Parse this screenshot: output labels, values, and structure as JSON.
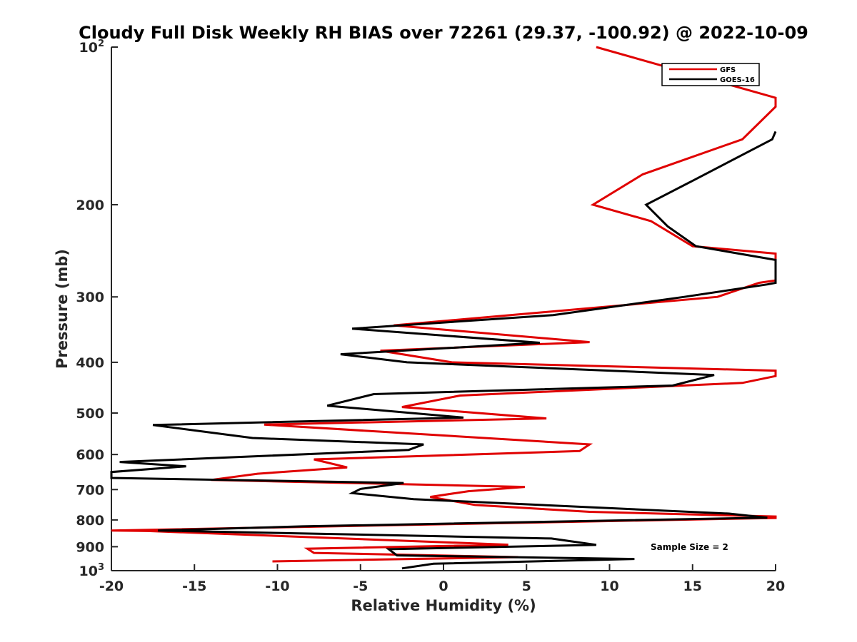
{
  "chart_data": {
    "type": "line",
    "title": "Cloudy Full Disk Weekly RH BIAS over 72261 (29.37, -100.92) @ 2022-10-09",
    "xlabel": "Relative Humidity (%)",
    "ylabel": "Pressure (mb)",
    "xlim": [
      -20,
      20
    ],
    "ylim": [
      100,
      1000
    ],
    "y_scale": "log",
    "y_reversed": true,
    "grid": false,
    "legend_position": "top-right",
    "x_ticks": [
      -20,
      -15,
      -10,
      -5,
      0,
      5,
      10,
      15,
      20
    ],
    "x_tick_labels": [
      "-20",
      "-15",
      "-10",
      "-5",
      "0",
      "5",
      "10",
      "15",
      "20"
    ],
    "y_ticks": [
      {
        "value": 100,
        "base": "10",
        "exp": "2"
      },
      {
        "value": 200,
        "label": "200"
      },
      {
        "value": 300,
        "label": "300"
      },
      {
        "value": 400,
        "label": "400"
      },
      {
        "value": 500,
        "label": "500"
      },
      {
        "value": 600,
        "label": "600"
      },
      {
        "value": 700,
        "label": "700"
      },
      {
        "value": 800,
        "label": "800"
      },
      {
        "value": 900,
        "label": "900"
      },
      {
        "value": 1000,
        "base": "10",
        "exp": "3"
      }
    ],
    "annotations": [
      "Sample Size = 2"
    ],
    "series": [
      {
        "name": "GFS",
        "color": "#e00000",
        "points": [
          [
            9.2,
            100
          ],
          [
            20,
            125
          ],
          [
            20,
            130
          ],
          [
            18,
            150
          ],
          [
            12,
            175
          ],
          [
            9,
            200
          ],
          [
            12.5,
            215
          ],
          [
            15,
            240
          ],
          [
            20,
            248
          ],
          [
            20,
            279
          ],
          [
            19,
            282
          ],
          [
            16.5,
            300
          ],
          [
            5.5,
            322
          ],
          [
            -3,
            340
          ],
          [
            8.8,
            366
          ],
          [
            -3.8,
            380
          ],
          [
            0.5,
            400
          ],
          [
            20,
            415
          ],
          [
            20,
            425
          ],
          [
            18,
            438
          ],
          [
            1,
            463
          ],
          [
            -2.5,
            487
          ],
          [
            6.2,
            512
          ],
          [
            -10.8,
            526
          ],
          [
            8.8,
            574
          ],
          [
            8.2,
            591
          ],
          [
            -7.8,
            613
          ],
          [
            -5.8,
            635
          ],
          [
            -11.2,
            653
          ],
          [
            -14,
            671
          ],
          [
            4.9,
            692
          ],
          [
            1.5,
            705
          ],
          [
            -0.8,
            723
          ],
          [
            1.9,
            749
          ],
          [
            8.8,
            772
          ],
          [
            20,
            788
          ],
          [
            20,
            793
          ],
          [
            -20,
            838
          ],
          [
            -17.8,
            840
          ],
          [
            3.9,
            892
          ],
          [
            -8.2,
            908
          ],
          [
            -7.8,
            925
          ],
          [
            4.5,
            942
          ],
          [
            -10.3,
            960
          ]
        ]
      },
      {
        "name": "GOES-16",
        "color": "#000000",
        "points": [
          [
            20,
            145
          ],
          [
            19.8,
            150
          ],
          [
            15,
            180
          ],
          [
            12.2,
            200
          ],
          [
            13.5,
            220
          ],
          [
            15.2,
            240
          ],
          [
            20,
            255
          ],
          [
            20,
            282
          ],
          [
            19.5,
            284
          ],
          [
            14.5,
            300
          ],
          [
            6.6,
            325
          ],
          [
            -5.5,
            345
          ],
          [
            5.8,
            367
          ],
          [
            -6.2,
            386
          ],
          [
            -2.2,
            400
          ],
          [
            16.3,
            423
          ],
          [
            13.8,
            443
          ],
          [
            -4.2,
            460
          ],
          [
            -7,
            484
          ],
          [
            1.2,
            510
          ],
          [
            -17.5,
            527
          ],
          [
            -11.5,
            558
          ],
          [
            -1.2,
            574
          ],
          [
            -2.1,
            588
          ],
          [
            -19.5,
            620
          ],
          [
            -15.5,
            632
          ],
          [
            -20,
            648
          ],
          [
            -20,
            665
          ],
          [
            -2.4,
            680
          ],
          [
            -5,
            698
          ],
          [
            -5.5,
            711
          ],
          [
            -1.8,
            730
          ],
          [
            17.2,
            778
          ],
          [
            19.5,
            792
          ],
          [
            -8.5,
            823
          ],
          [
            -17.2,
            838
          ],
          [
            6.5,
            868
          ],
          [
            9.2,
            893
          ],
          [
            -3.3,
            910
          ],
          [
            -2.8,
            935
          ],
          [
            11.5,
            950
          ],
          [
            -0.6,
            970
          ],
          [
            -2.5,
            990
          ]
        ]
      }
    ]
  }
}
